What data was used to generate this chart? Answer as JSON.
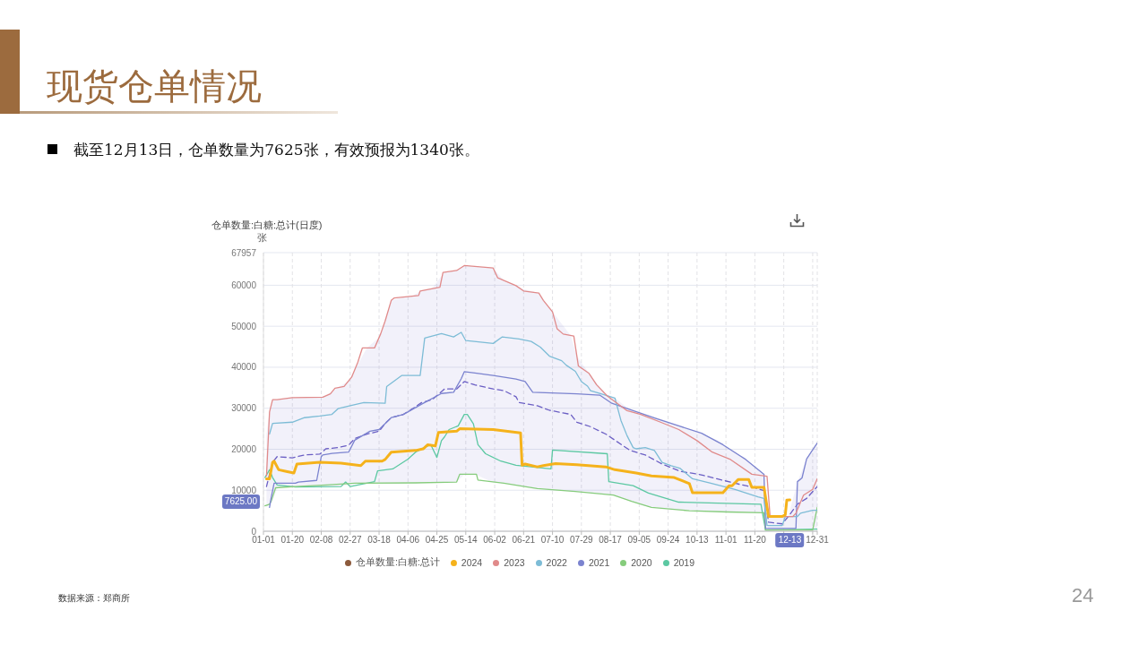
{
  "chart_data": {
    "type": "line",
    "title": "现货仓单情况",
    "subtitle": "截至12月13日，仓单数量为7625张，有效预报为1340张。",
    "ylabel": "仓单数量:白糖:总计(日度)",
    "annotations": [
      "张",
      "数据来源：郑商所",
      "24",
      "7625.00",
      {
        "text": "12-13",
        "x": "--12-13"
      }
    ],
    "xlim": [
      "--01-01",
      "--12-31"
    ],
    "xticks": [
      {
        "value": "--01-01",
        "label": "01-01"
      },
      {
        "value": "--01-20",
        "label": "01-20"
      },
      {
        "value": "--02-08",
        "label": "02-08"
      },
      {
        "value": "--02-27",
        "label": "02-27"
      },
      {
        "value": "--03-18",
        "label": "03-18"
      },
      {
        "value": "--04-06",
        "label": "04-06"
      },
      {
        "value": "--04-25",
        "label": "04-25"
      },
      {
        "value": "--05-14",
        "label": "05-14"
      },
      {
        "value": "--06-02",
        "label": "06-02"
      },
      {
        "value": "--06-21",
        "label": "06-21"
      },
      {
        "value": "--07-10",
        "label": "07-10"
      },
      {
        "value": "--07-29",
        "label": "07-29"
      },
      {
        "value": "--08-17",
        "label": "08-17"
      },
      {
        "value": "--09-05",
        "label": "09-05"
      },
      {
        "value": "--09-24",
        "label": "09-24"
      },
      {
        "value": "--10-13",
        "label": "10-13"
      },
      {
        "value": "--11-01",
        "label": "11-01"
      },
      {
        "value": "--11-20",
        "label": "11-20"
      },
      {
        "value": "--12-09",
        "label": null
      },
      {
        "value": "--12-28",
        "label": null
      },
      {
        "value": "--12-31",
        "label": "12-31"
      }
    ],
    "ylim": [
      0,
      67957
    ],
    "yticks": [
      0,
      10000,
      20000,
      30000,
      40000,
      50000,
      60000,
      67957
    ],
    "grid": true,
    "legend": "bottom",
    "series": [
      {
        "name": "仓单数量:白糖:总计",
        "color": "#8c5a3c"
      },
      {
        "name": "2024",
        "color": "#f5b21b",
        "x": [
          "--01-03",
          "--01-05",
          "--01-07",
          "--01-08",
          "--01-11",
          "--01-16",
          "--01-21",
          "--01-23",
          "--02-07",
          "--02-21",
          "--03-06",
          "--03-09",
          "--03-20",
          "--03-22",
          "--03-26",
          "--04-11",
          "--04-16",
          "--04-19",
          "--04-24",
          "--04-26",
          "--05-08",
          "--05-10",
          "--06-01",
          "--06-19",
          "--06-20",
          "--06-22",
          "--06-30",
          "--07-04",
          "--07-12",
          "--07-26",
          "--08-14",
          "--08-20",
          "--09-03",
          "--09-13",
          "--09-28",
          "--10-08",
          "--10-10",
          "--10-30",
          "--11-03",
          "--11-05",
          "--11-09",
          "--11-16",
          "--11-18",
          "--11-26",
          "--11-29",
          "--12-08",
          "--12-10",
          "--12-11",
          "--12-13"
        ],
        "values": [
          12800,
          12800,
          16800,
          17100,
          15000,
          14600,
          14200,
          16400,
          16800,
          16600,
          16000,
          17100,
          17100,
          17500,
          19300,
          19700,
          20100,
          21100,
          20800,
          24100,
          24400,
          25000,
          24800,
          24000,
          16100,
          16400,
          15700,
          16000,
          16500,
          16200,
          15700,
          15000,
          14200,
          13500,
          13100,
          11600,
          9400,
          9400,
          11100,
          11100,
          12600,
          12600,
          10700,
          10700,
          3600,
          3600,
          4000,
          7600,
          7625
        ]
      },
      {
        "name": "2023",
        "color": "#e08a8a",
        "x": [
          "--01-03",
          "--01-05",
          "--01-07",
          "--01-10",
          "--01-20",
          "--02-09",
          "--02-14",
          "--02-17",
          "--02-23",
          "--02-28",
          "--03-04",
          "--03-07",
          "--03-15",
          "--03-19",
          "--03-22",
          "--03-26",
          "--03-28",
          "--04-13",
          "--04-14",
          "--04-27",
          "--04-29",
          "--05-08",
          "--05-13",
          "--06-01",
          "--06-04",
          "--06-16",
          "--06-21",
          "--07-01",
          "--07-04",
          "--07-10",
          "--07-13",
          "--07-17",
          "--07-24",
          "--07-27",
          "--08-03",
          "--08-08",
          "--08-15",
          "--08-28",
          "--09-06",
          "--09-19",
          "--10-01",
          "--10-13",
          "--10-23",
          "--11-04",
          "--11-18",
          "--11-28",
          "--11-30",
          "--12-15",
          "--12-17",
          "--12-22",
          "--12-28",
          "--12-31"
        ],
        "values": [
          13500,
          29100,
          32100,
          32100,
          32600,
          32700,
          33500,
          34900,
          35300,
          37600,
          41200,
          44700,
          44700,
          48100,
          51300,
          56300,
          56900,
          57500,
          58600,
          59500,
          63100,
          63600,
          64800,
          64200,
          61800,
          59900,
          58600,
          58100,
          56300,
          53500,
          49400,
          48100,
          47600,
          40300,
          38500,
          35700,
          33000,
          29400,
          28500,
          26600,
          24800,
          22100,
          19300,
          17500,
          13900,
          13400,
          3600,
          3600,
          4400,
          8800,
          10200,
          12800
        ]
      },
      {
        "name": "2022",
        "color": "#7dbcd6",
        "x": [
          "--01-05",
          "--01-07",
          "--01-20",
          "--01-28",
          "--02-07",
          "--02-15",
          "--02-19",
          "--02-27",
          "--03-08",
          "--03-22",
          "--03-23",
          "--04-02",
          "--04-14",
          "--04-17",
          "--04-28",
          "--05-06",
          "--05-11",
          "--05-14",
          "--06-01",
          "--06-07",
          "--06-18",
          "--06-26",
          "--07-02",
          "--07-08",
          "--07-16",
          "--07-19",
          "--07-25",
          "--07-29",
          "--08-02",
          "--08-04",
          "--08-10",
          "--08-20",
          "--08-24",
          "--08-28",
          "--09-01",
          "--09-03",
          "--09-09",
          "--09-15",
          "--09-20",
          "--09-26",
          "--10-02",
          "--10-10",
          "--10-22",
          "--11-07",
          "--11-22",
          "--11-26",
          "--11-28",
          "--12-08",
          "--12-10",
          "--12-18",
          "--12-20",
          "--12-28",
          "--12-31"
        ],
        "values": [
          23700,
          26300,
          26600,
          27700,
          28100,
          28500,
          29900,
          30600,
          31400,
          31200,
          35300,
          38000,
          38000,
          47100,
          48200,
          47400,
          48500,
          46500,
          45800,
          47400,
          46900,
          46300,
          44900,
          42700,
          41600,
          40500,
          39000,
          36500,
          35400,
          34300,
          33600,
          32500,
          27000,
          23300,
          20400,
          20100,
          20400,
          19700,
          16800,
          16000,
          15300,
          12800,
          11700,
          10200,
          8400,
          8000,
          1400,
          1400,
          3600,
          3600,
          4400,
          5100,
          5100
        ]
      },
      {
        "name": "2021",
        "color": "#7b83cf",
        "x": [
          "--01-05",
          "--01-06",
          "--01-08",
          "--01-22",
          "--01-24",
          "--02-05",
          "--02-08",
          "--02-09",
          "--02-15",
          "--02-26",
          "--03-02",
          "--03-12",
          "--03-18",
          "--03-26",
          "--04-03",
          "--04-15",
          "--04-28",
          "--05-06",
          "--05-11",
          "--05-13",
          "--05-20",
          "--06-01",
          "--06-16",
          "--06-22",
          "--06-27",
          "--07-26",
          "--08-10",
          "--08-18",
          "--09-01",
          "--09-16",
          "--10-01",
          "--10-16",
          "--10-30",
          "--11-14",
          "--11-26",
          "--11-27",
          "--12-17",
          "--12-18",
          "--12-21",
          "--12-24",
          "--12-27",
          "--12-31"
        ],
        "values": [
          5800,
          8000,
          11700,
          11700,
          12000,
          12400,
          18200,
          18600,
          19000,
          19300,
          22200,
          24400,
          24800,
          27700,
          28500,
          31000,
          33600,
          33900,
          37200,
          38900,
          38600,
          38000,
          37100,
          36500,
          33900,
          33500,
          33200,
          31200,
          29400,
          27500,
          25700,
          23900,
          21100,
          17500,
          13900,
          700,
          700,
          12100,
          13000,
          17600,
          19300,
          21500
        ]
      },
      {
        "name": "2020",
        "color": "#86cc7c",
        "x": [
          "--01-02",
          "--01-05",
          "--01-06",
          "--01-09",
          "--01-22",
          "--02-11",
          "--03-02",
          "--04-11",
          "--05-08",
          "--05-10",
          "--05-21",
          "--05-22",
          "--06-08",
          "--06-18",
          "--06-30",
          "--07-25",
          "--08-19",
          "--08-31",
          "--09-13",
          "--10-08",
          "--11-02",
          "--11-26",
          "--11-27",
          "--12-28",
          "--12-31"
        ],
        "values": [
          6200,
          6600,
          7300,
          10600,
          10900,
          11300,
          11700,
          11800,
          12000,
          13900,
          13900,
          12500,
          11700,
          11100,
          10400,
          9700,
          8800,
          7300,
          5800,
          5000,
          4700,
          4500,
          300,
          300,
          5800
        ]
      },
      {
        "name": "2019",
        "color": "#5cc8a2",
        "x": [
          "--01-02",
          "--01-05",
          "--01-07",
          "--01-10",
          "--01-22",
          "--02-21",
          "--02-24",
          "--02-27",
          "--03-15",
          "--03-17",
          "--03-27",
          "--04-06",
          "--04-11",
          "--04-16",
          "--04-21",
          "--04-25",
          "--04-28",
          "--04-30",
          "--05-03",
          "--05-09",
          "--05-13",
          "--05-15",
          "--05-19",
          "--05-22",
          "--05-27",
          "--06-06",
          "--06-16",
          "--07-09",
          "--07-10",
          "--08-15",
          "--08-16",
          "--09-01",
          "--09-11",
          "--10-01",
          "--11-24",
          "--11-27",
          "--12-31"
        ],
        "values": [
          13100,
          15000,
          13100,
          11300,
          10800,
          10900,
          12000,
          10900,
          12100,
          14700,
          15200,
          17600,
          19300,
          20300,
          21100,
          18000,
          22100,
          23000,
          24800,
          25700,
          28500,
          28500,
          26200,
          21100,
          18900,
          17100,
          16100,
          15200,
          19800,
          18900,
          12100,
          11100,
          9300,
          7100,
          6600,
          300,
          500
        ]
      },
      {
        "color": "#6b5fc4",
        "line_style": "dashed",
        "x": [
          "--01-03",
          "--01-05",
          "--01-07",
          "--01-10",
          "--01-20",
          "--01-28",
          "--02-07",
          "--02-11",
          "--02-19",
          "--02-26",
          "--03-02",
          "--03-10",
          "--03-18",
          "--03-22",
          "--03-26",
          "--04-03",
          "--04-09",
          "--04-15",
          "--04-22",
          "--04-30",
          "--05-08",
          "--05-13",
          "--05-20",
          "--06-01",
          "--06-08",
          "--06-16",
          "--06-18",
          "--06-30",
          "--07-08",
          "--07-22",
          "--07-26",
          "--08-04",
          "--08-14",
          "--08-20",
          "--08-30",
          "--09-09",
          "--09-20",
          "--10-02",
          "--10-14",
          "--10-26",
          "--11-07",
          "--11-20",
          "--11-26",
          "--11-29",
          "--12-08",
          "--12-12",
          "--12-18",
          "--12-24",
          "--12-31"
        ],
        "values": [
          10900,
          13900,
          16800,
          18200,
          17900,
          18600,
          18800,
          20100,
          20400,
          21000,
          22600,
          23700,
          24400,
          26300,
          27700,
          28500,
          29900,
          31400,
          32100,
          34700,
          34700,
          36500,
          35700,
          34700,
          34300,
          32800,
          31400,
          30600,
          29500,
          28500,
          26600,
          25500,
          23700,
          22200,
          19700,
          18600,
          16400,
          14600,
          13900,
          12800,
          11700,
          10600,
          9900,
          2200,
          1800,
          3600,
          6600,
          8000,
          10900
        ],
        "upper": [
          23700,
          29100,
          32100,
          32100,
          32600,
          32600,
          32700,
          33100,
          35000,
          36700,
          39400,
          44700,
          47300,
          51300,
          56300,
          57100,
          57400,
          58700,
          59300,
          63200,
          63600,
          64800,
          64600,
          64200,
          61200,
          59900,
          59400,
          58200,
          54500,
          47700,
          42700,
          38000,
          33400,
          32500,
          29600,
          28500,
          27300,
          25600,
          24000,
          22300,
          19300,
          15700,
          13900,
          3600,
          3600,
          3600,
          12100,
          17600,
          21500
        ],
        "lower": [
          5800,
          6600,
          7300,
          10600,
          10800,
          10900,
          10900,
          10900,
          10900,
          11300,
          11500,
          11600,
          11700,
          11700,
          11700,
          11700,
          11700,
          11800,
          11800,
          11900,
          12000,
          13900,
          13900,
          11900,
          11700,
          11200,
          11100,
          10400,
          10200,
          9800,
          9700,
          9400,
          9000,
          8700,
          7400,
          6100,
          5600,
          5200,
          5000,
          4800,
          4700,
          4600,
          4500,
          300,
          300,
          300,
          300,
          300,
          500
        ]
      }
    ]
  }
}
